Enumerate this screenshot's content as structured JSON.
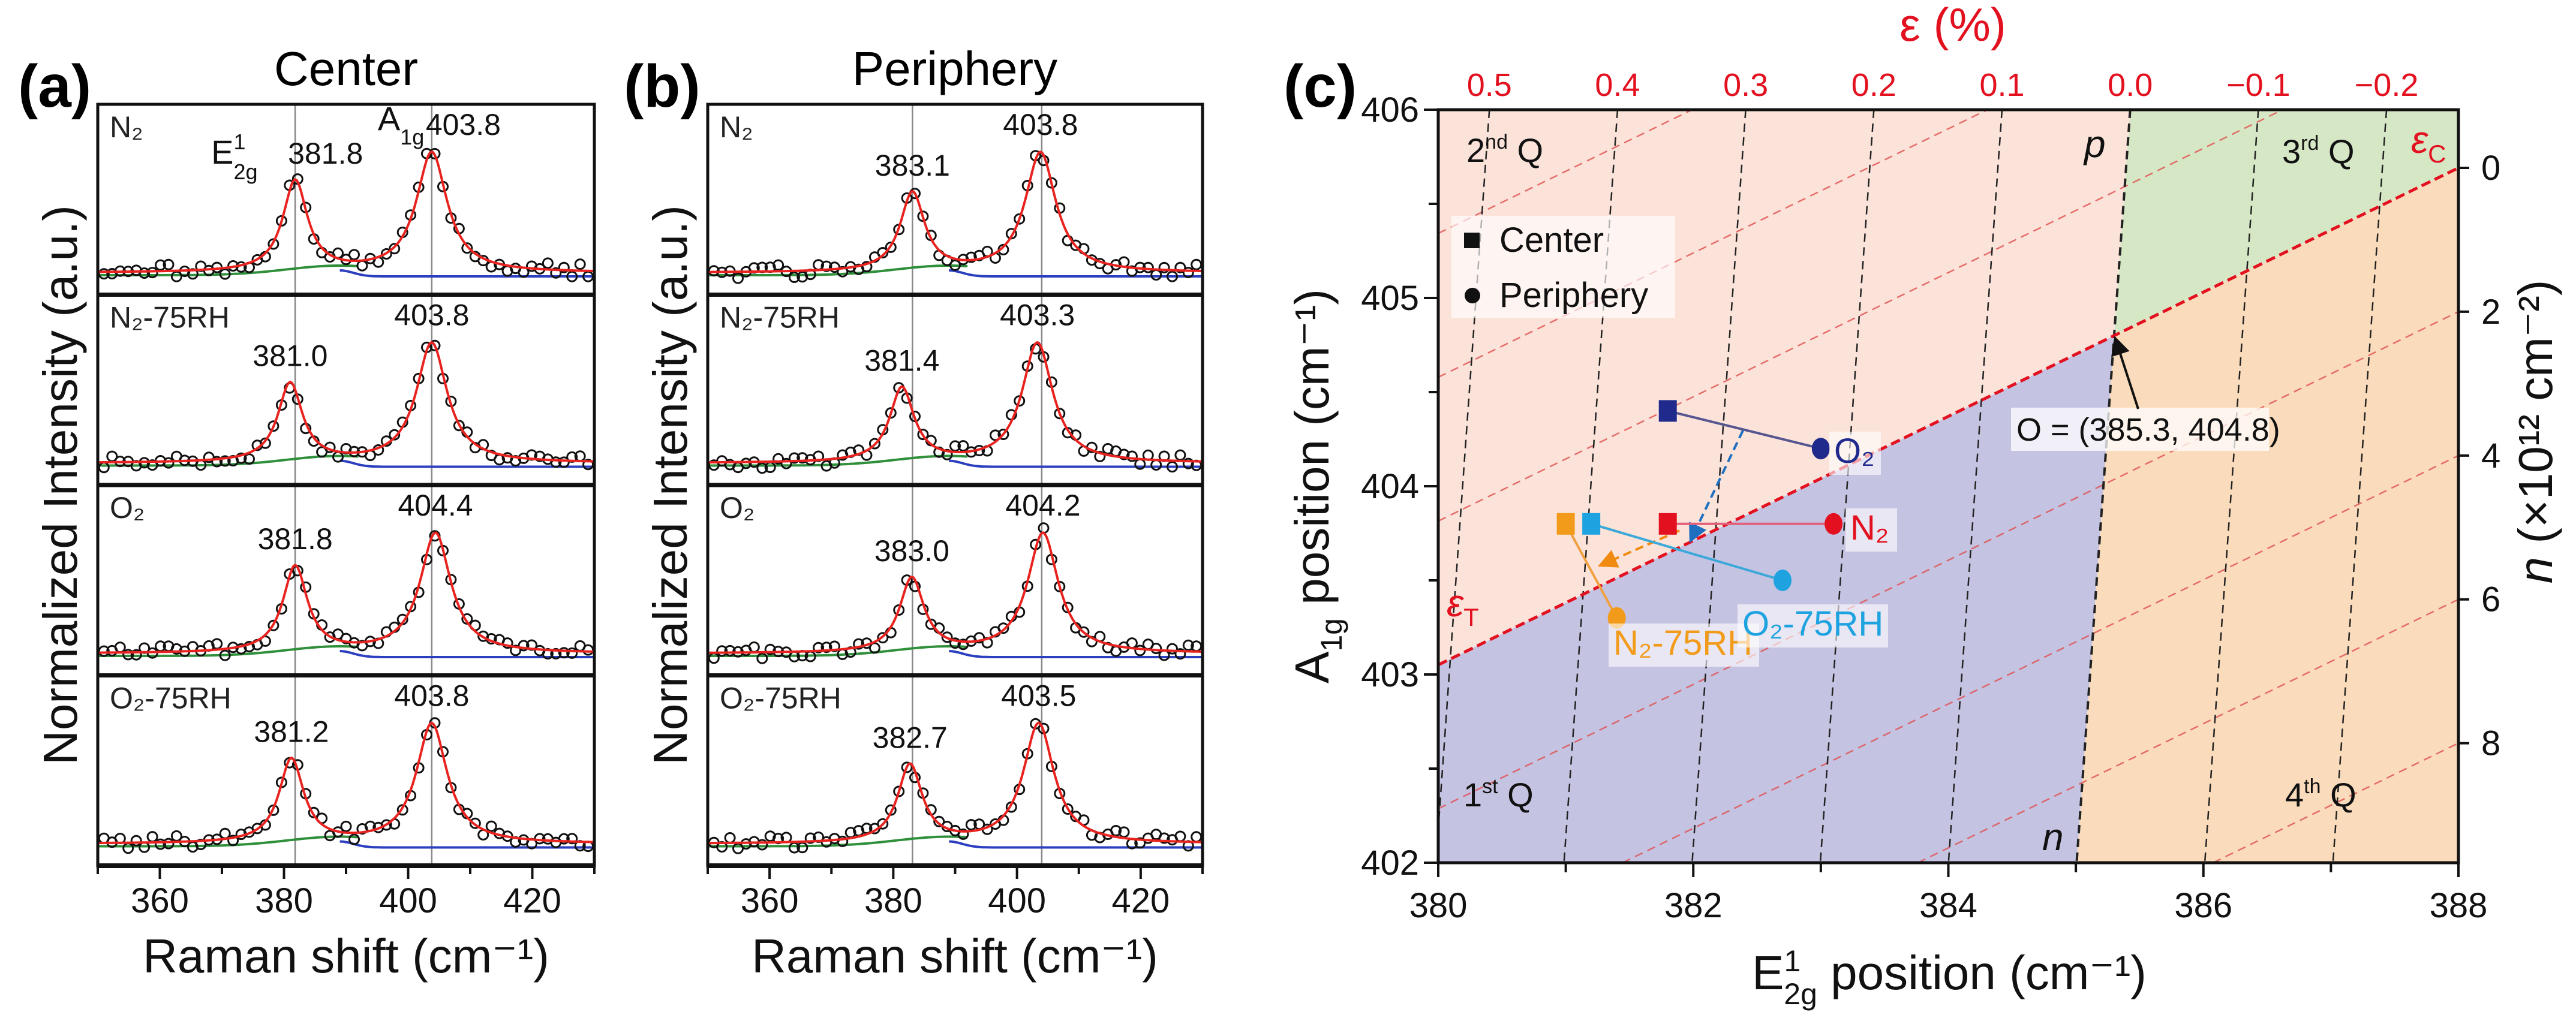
{
  "panels": {
    "a": {
      "label": "(a)",
      "title": "Center"
    },
    "b": {
      "label": "(b)",
      "title": "Periphery"
    },
    "c": {
      "label": "(c)"
    }
  },
  "chart_data": [
    {
      "type": "line",
      "panel": "(a)",
      "title": "Center",
      "xlabel": "Raman shift (cm⁻¹)",
      "ylabel": "Normalized Intensity (a.u.)",
      "xlim": [
        350,
        430
      ],
      "xticks": [
        360,
        380,
        400,
        420
      ],
      "reference_lines": [
        381.8,
        403.8
      ],
      "mode_labels": {
        "E": {
          "base": "E",
          "sup": "1",
          "sub": "2g"
        },
        "A": {
          "base": "A",
          "sub": "1g"
        }
      },
      "series": [
        {
          "name": "N₂",
          "E12g": 381.8,
          "A1g": 403.8,
          "E_rel": 0.76
        },
        {
          "name": "N₂-75RH",
          "E12g": 381.0,
          "A1g": 403.8,
          "E_rel": 0.66
        },
        {
          "name": "O₂",
          "E12g": 381.8,
          "A1g": 404.4,
          "E_rel": 0.72
        },
        {
          "name": "O₂-75RH",
          "E12g": 381.2,
          "A1g": 403.8,
          "E_rel": 0.7
        }
      ]
    },
    {
      "type": "line",
      "panel": "(b)",
      "title": "Periphery",
      "xlabel": "Raman shift (cm⁻¹)",
      "ylabel": "Normalized Intensity (a.u.)",
      "xlim": [
        350,
        430
      ],
      "xticks": [
        360,
        380,
        400,
        420
      ],
      "reference_lines": [
        383.1,
        404.0
      ],
      "series": [
        {
          "name": "N₂",
          "E12g": 383.1,
          "A1g": 403.8,
          "E_rel": 0.66
        },
        {
          "name": "N₂-75RH",
          "E12g": 381.4,
          "A1g": 403.3,
          "E_rel": 0.62
        },
        {
          "name": "O₂",
          "E12g": 383.0,
          "A1g": 404.2,
          "E_rel": 0.62
        },
        {
          "name": "O₂-75RH",
          "E12g": 382.7,
          "A1g": 403.5,
          "E_rel": 0.65
        }
      ]
    },
    {
      "type": "scatter",
      "panel": "(c)",
      "xlabel": {
        "base": "E",
        "sup": "1",
        "sub": "2g",
        "rest": " position (cm⁻¹)"
      },
      "ylabel": {
        "base": "A",
        "sub": "1g",
        "rest": " position (cm⁻¹)"
      },
      "top_axis_label": "ε (%)",
      "top_ticks": [
        0.5,
        0.4,
        0.3,
        0.2,
        0.1,
        0.0,
        -0.1,
        -0.2
      ],
      "right_axis_label": {
        "var": "n",
        "rest": " (×10¹² cm⁻²)"
      },
      "right_ticks": [
        0,
        2,
        4,
        6,
        8
      ],
      "xlim": [
        380,
        388
      ],
      "ylim": [
        402,
        406
      ],
      "xticks": [
        380,
        382,
        384,
        386,
        388
      ],
      "yticks": [
        402,
        403,
        404,
        405,
        406
      ],
      "origin": {
        "x": 385.3,
        "y": 404.8,
        "label": "O = (385.3, 404.8)"
      },
      "line_labels": {
        "tensile": {
          "base": "ε",
          "sub": "T"
        },
        "compressive": {
          "base": "ε",
          "sub": "C"
        },
        "p_type": "p",
        "n_type": "n"
      },
      "quadrants": [
        {
          "num": "1",
          "sup": "st",
          "rest": " Q"
        },
        {
          "num": "2",
          "sup": "nd",
          "rest": " Q"
        },
        {
          "num": "3",
          "sup": "rd",
          "rest": " Q"
        },
        {
          "num": "4",
          "sup": "th",
          "rest": " Q"
        }
      ],
      "legend": [
        {
          "marker": "square",
          "label": "Center"
        },
        {
          "marker": "circle",
          "label": "Periphery"
        }
      ],
      "region_colors": {
        "q1": "#c5c3e2",
        "q2": "#fbe3da",
        "q3": "#d6e7c6",
        "q4": "#fadcbc"
      },
      "series": [
        {
          "name": "O₂",
          "color": "#1f2a8c",
          "line_color": "#55558f",
          "center": [
            381.8,
            404.4
          ],
          "periphery": [
            383.0,
            404.2
          ]
        },
        {
          "name": "N₂",
          "color": "#e3101f",
          "line_color": "#e2607a",
          "center": [
            381.8,
            403.8
          ],
          "periphery": [
            383.1,
            403.8
          ]
        },
        {
          "name": "N₂-75RH",
          "color": "#f29b1a",
          "line_color": "#f0a040",
          "center": [
            381.0,
            403.8
          ],
          "periphery": [
            381.4,
            403.3
          ]
        },
        {
          "name": "O₂-75RH",
          "color": "#1fa3e0",
          "line_color": "#3aa8d8",
          "center": [
            381.2,
            403.8
          ],
          "periphery": [
            382.7,
            403.5
          ]
        }
      ]
    }
  ]
}
